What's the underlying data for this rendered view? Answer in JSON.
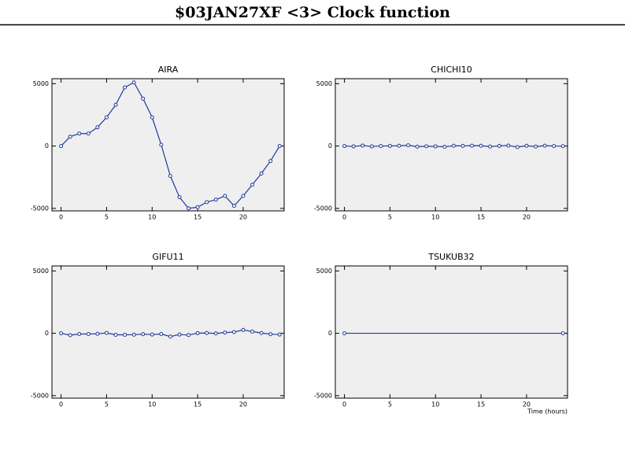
{
  "header": {
    "title": "$03JAN27XF <3>  Clock function"
  },
  "chart_data": [
    {
      "type": "line",
      "title": "AIRA",
      "color": "#1f3a9a",
      "x": [
        0,
        1,
        2,
        3,
        4,
        5,
        6,
        7,
        8,
        9,
        10,
        11,
        12,
        13,
        14,
        15,
        16,
        17,
        18,
        19,
        20,
        21,
        22,
        23,
        24
      ],
      "values": [
        0,
        750,
        1000,
        1000,
        1500,
        2300,
        3300,
        4700,
        5100,
        3800,
        2300,
        100,
        -2400,
        -4100,
        -5000,
        -4900,
        -4500,
        -4300,
        -4000,
        -4800,
        -4000,
        -3100,
        -2200,
        -1200,
        0
      ],
      "xlim": [
        -1,
        24.5
      ],
      "ylim": [
        -5200,
        5400
      ],
      "xticks": [
        0,
        5,
        10,
        15,
        20
      ],
      "yticks": [
        5000,
        0,
        -5000
      ]
    },
    {
      "type": "line",
      "title": "CHICHI10",
      "color": "#1f3a9a",
      "x": [
        0,
        1,
        2,
        3,
        4,
        5,
        6,
        7,
        8,
        9,
        10,
        11,
        12,
        13,
        14,
        15,
        16,
        17,
        18,
        19,
        20,
        21,
        22,
        23,
        24
      ],
      "values": [
        0,
        -30,
        40,
        -30,
        0,
        10,
        20,
        60,
        -50,
        -20,
        -30,
        -60,
        20,
        10,
        30,
        20,
        -40,
        10,
        40,
        -80,
        20,
        -40,
        30,
        0,
        -10
      ],
      "xlim": [
        -1,
        24.5
      ],
      "ylim": [
        -5200,
        5400
      ],
      "xticks": [
        0,
        5,
        10,
        15,
        20
      ],
      "yticks": [
        5000,
        0,
        -5000
      ]
    },
    {
      "type": "line",
      "title": "GIFU11",
      "color": "#1f3a9a",
      "x": [
        0,
        1,
        2,
        3,
        4,
        5,
        6,
        7,
        8,
        9,
        10,
        11,
        12,
        13,
        14,
        15,
        16,
        17,
        18,
        19,
        20,
        21,
        22,
        23,
        24
      ],
      "values": [
        0,
        -150,
        -60,
        -60,
        -40,
        30,
        -120,
        -120,
        -110,
        -70,
        -100,
        -60,
        -260,
        -100,
        -140,
        10,
        20,
        -10,
        60,
        100,
        270,
        140,
        20,
        -70,
        -100
      ],
      "xlim": [
        -1,
        24.5
      ],
      "ylim": [
        -5200,
        5400
      ],
      "xticks": [
        0,
        5,
        10,
        15,
        20
      ],
      "yticks": [
        5000,
        0,
        -5000
      ]
    },
    {
      "type": "line",
      "title": "TSUKUB32",
      "color": "#1f3a9a",
      "x_label": "Time (hours)",
      "x": [
        0,
        24
      ],
      "values": [
        0,
        0
      ],
      "xlim": [
        -1,
        24.5
      ],
      "ylim": [
        -5200,
        5400
      ],
      "xticks": [
        0,
        5,
        10,
        15,
        20
      ],
      "yticks": [
        5000,
        0,
        -5000
      ]
    }
  ]
}
